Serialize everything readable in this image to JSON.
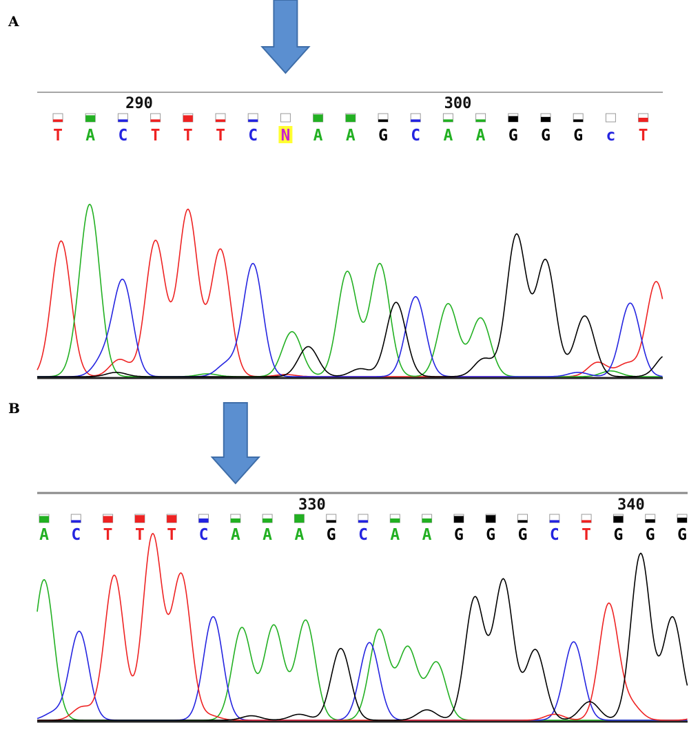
{
  "colors": {
    "A": "#22b022",
    "C": "#2424e0",
    "G": "#000000",
    "T": "#ee2222",
    "N": "#cc22cc",
    "N_highlight": "#ffff33",
    "arrow_fill": "#5b8fd0",
    "arrow_stroke": "#3e6da8",
    "rule": "#888888"
  },
  "chart_data": [
    {
      "type": "line",
      "panel_label": "A",
      "title": "",
      "xlabel": "",
      "ylabel": "",
      "position_labels": [
        {
          "text": "290",
          "index": 2.5
        },
        {
          "text": "300",
          "index": 12.3
        }
      ],
      "bases": [
        "T",
        "A",
        "C",
        "T",
        "T",
        "T",
        "C",
        "N",
        "A",
        "A",
        "G",
        "C",
        "A",
        "A",
        "G",
        "G",
        "G",
        "c",
        "T"
      ],
      "quality_fill": [
        0.3,
        0.8,
        0.3,
        0.3,
        0.8,
        0.3,
        0.3,
        0.0,
        0.9,
        0.9,
        0.3,
        0.3,
        0.3,
        0.3,
        0.7,
        0.6,
        0.3,
        0.0,
        0.5
      ],
      "highlighted_base_index": 7,
      "arrow_base_index": 7,
      "ylim": [
        0,
        240
      ],
      "series": [
        {
          "base": "T",
          "peaks": [
            [
              0.1,
              190
            ],
            [
              3,
              190
            ],
            [
              4,
              233
            ],
            [
              5,
              178
            ],
            [
              18.4,
              133
            ],
            [
              7,
              3
            ],
            [
              16.6,
              20
            ],
            [
              17.5,
              18
            ],
            [
              1.9,
              24
            ]
          ]
        },
        {
          "base": "A",
          "peaks": [
            [
              1,
              225
            ],
            [
              7.2,
              63
            ],
            [
              8.9,
              147
            ],
            [
              9.9,
              158
            ],
            [
              12,
              102
            ],
            [
              13,
              82
            ],
            [
              0.7,
              26
            ],
            [
              4.6,
              4
            ],
            [
              17,
              8
            ]
          ]
        },
        {
          "base": "C",
          "peaks": [
            [
              2,
              133
            ],
            [
              6,
              158
            ],
            [
              11,
              112
            ],
            [
              17.6,
              103
            ],
            [
              1.4,
              24
            ],
            [
              5.2,
              18
            ],
            [
              16,
              6
            ]
          ]
        },
        {
          "base": "G",
          "peaks": [
            [
              7.7,
              42
            ],
            [
              10.4,
              104
            ],
            [
              14.1,
              198
            ],
            [
              15,
              162
            ],
            [
              16.2,
              85
            ],
            [
              18.7,
              30
            ],
            [
              13.1,
              25
            ],
            [
              9.3,
              11
            ],
            [
              1.8,
              6
            ]
          ]
        }
      ]
    },
    {
      "type": "line",
      "panel_label": "B",
      "title": "",
      "xlabel": "",
      "ylabel": "",
      "position_labels": [
        {
          "text": "330",
          "index": 8.4
        },
        {
          "text": "340",
          "index": 18.4
        }
      ],
      "bases": [
        "A",
        "C",
        "T",
        "T",
        "T",
        "C",
        "A",
        "A",
        "A",
        "G",
        "C",
        "A",
        "A",
        "G",
        "G",
        "G",
        "C",
        "T",
        "G",
        "G",
        "G"
      ],
      "quality_fill": [
        0.8,
        0.3,
        0.8,
        0.9,
        0.9,
        0.5,
        0.5,
        0.5,
        1.0,
        0.3,
        0.3,
        0.5,
        0.5,
        0.8,
        0.9,
        0.3,
        0.3,
        0.3,
        0.8,
        0.4,
        0.6
      ],
      "highlighted_base_index": -1,
      "arrow_base_index": 6,
      "ylim": [
        0,
        240
      ],
      "series": [
        {
          "base": "A",
          "peaks": [
            [
              0,
              190
            ],
            [
              6.2,
              125
            ],
            [
              7.2,
              128
            ],
            [
              8.2,
              135
            ],
            [
              10.5,
              122
            ],
            [
              11.4,
              98
            ],
            [
              12.3,
              78
            ]
          ]
        },
        {
          "base": "C",
          "peaks": [
            [
              1.1,
              120
            ],
            [
              5.3,
              140
            ],
            [
              10.2,
              105
            ],
            [
              16.6,
              106
            ],
            [
              0.3,
              10
            ]
          ]
        },
        {
          "base": "T",
          "peaks": [
            [
              2.2,
              196
            ],
            [
              3.4,
              250
            ],
            [
              4.3,
              196
            ],
            [
              17.7,
              157
            ],
            [
              20.8,
              16
            ],
            [
              1.2,
              18
            ],
            [
              18.4,
              20
            ],
            [
              5.2,
              6
            ],
            [
              16,
              8
            ]
          ]
        },
        {
          "base": "G",
          "peaks": [
            [
              9.3,
              97
            ],
            [
              13.5,
              165
            ],
            [
              14.4,
              189
            ],
            [
              15.4,
              95
            ],
            [
              18.7,
              225
            ],
            [
              19.7,
              139
            ],
            [
              20.9,
              91
            ],
            [
              17.1,
              25
            ],
            [
              12,
              14
            ],
            [
              8,
              8
            ],
            [
              6.5,
              6
            ]
          ]
        }
      ]
    }
  ]
}
